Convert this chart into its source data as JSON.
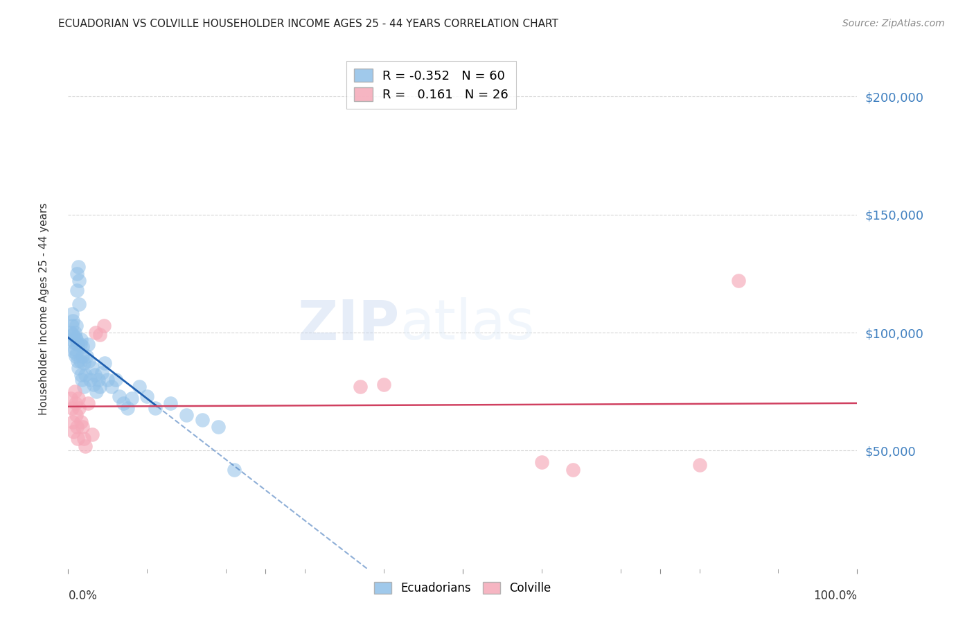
{
  "title": "ECUADORIAN VS COLVILLE HOUSEHOLDER INCOME AGES 25 - 44 YEARS CORRELATION CHART",
  "source": "Source: ZipAtlas.com",
  "ylabel": "Householder Income Ages 25 - 44 years",
  "ylim": [
    0,
    220000
  ],
  "xlim": [
    0.0,
    1.0
  ],
  "yticks": [
    50000,
    100000,
    150000,
    200000
  ],
  "ytick_labels": [
    "$50,000",
    "$100,000",
    "$150,000",
    "$200,000"
  ],
  "background_color": "#ffffff",
  "grid_color": "#cccccc",
  "watermark_zip": "ZIP",
  "watermark_atlas": "atlas",
  "blue_color": "#90c0e8",
  "pink_color": "#f5a8b8",
  "blue_line_color": "#2060b0",
  "pink_line_color": "#d04060",
  "ytick_color": "#4080c0",
  "ecuadorians_x": [
    0.003,
    0.004,
    0.005,
    0.005,
    0.006,
    0.006,
    0.007,
    0.007,
    0.008,
    0.008,
    0.009,
    0.009,
    0.01,
    0.01,
    0.01,
    0.011,
    0.011,
    0.012,
    0.012,
    0.013,
    0.013,
    0.014,
    0.014,
    0.015,
    0.015,
    0.016,
    0.016,
    0.017,
    0.018,
    0.018,
    0.02,
    0.02,
    0.022,
    0.023,
    0.025,
    0.026,
    0.028,
    0.03,
    0.032,
    0.034,
    0.036,
    0.038,
    0.04,
    0.043,
    0.046,
    0.05,
    0.055,
    0.06,
    0.065,
    0.07,
    0.075,
    0.08,
    0.09,
    0.1,
    0.11,
    0.13,
    0.15,
    0.17,
    0.19,
    0.21
  ],
  "ecuadorians_y": [
    100000,
    97000,
    103000,
    108000,
    99000,
    105000,
    96000,
    92000,
    100000,
    93000,
    98000,
    90000,
    97000,
    103000,
    91000,
    125000,
    118000,
    88000,
    95000,
    85000,
    128000,
    112000,
    122000,
    95000,
    88000,
    82000,
    97000,
    80000,
    90000,
    94000,
    77000,
    87000,
    82000,
    90000,
    95000,
    88000,
    80000,
    85000,
    78000,
    82000,
    75000,
    80000,
    77000,
    83000,
    87000,
    80000,
    77000,
    80000,
    73000,
    70000,
    68000,
    72000,
    77000,
    73000,
    68000,
    70000,
    65000,
    63000,
    60000,
    42000
  ],
  "colville_x": [
    0.003,
    0.005,
    0.006,
    0.007,
    0.008,
    0.009,
    0.01,
    0.011,
    0.012,
    0.013,
    0.014,
    0.016,
    0.018,
    0.02,
    0.022,
    0.025,
    0.03,
    0.035,
    0.04,
    0.045,
    0.37,
    0.4,
    0.6,
    0.64,
    0.8,
    0.85
  ],
  "colville_y": [
    72000,
    68000,
    62000,
    58000,
    75000,
    70000,
    65000,
    60000,
    55000,
    72000,
    68000,
    62000,
    60000,
    55000,
    52000,
    70000,
    57000,
    100000,
    99000,
    103000,
    77000,
    78000,
    45000,
    42000,
    44000,
    122000
  ],
  "figsize": [
    14.06,
    8.92
  ],
  "dpi": 100
}
